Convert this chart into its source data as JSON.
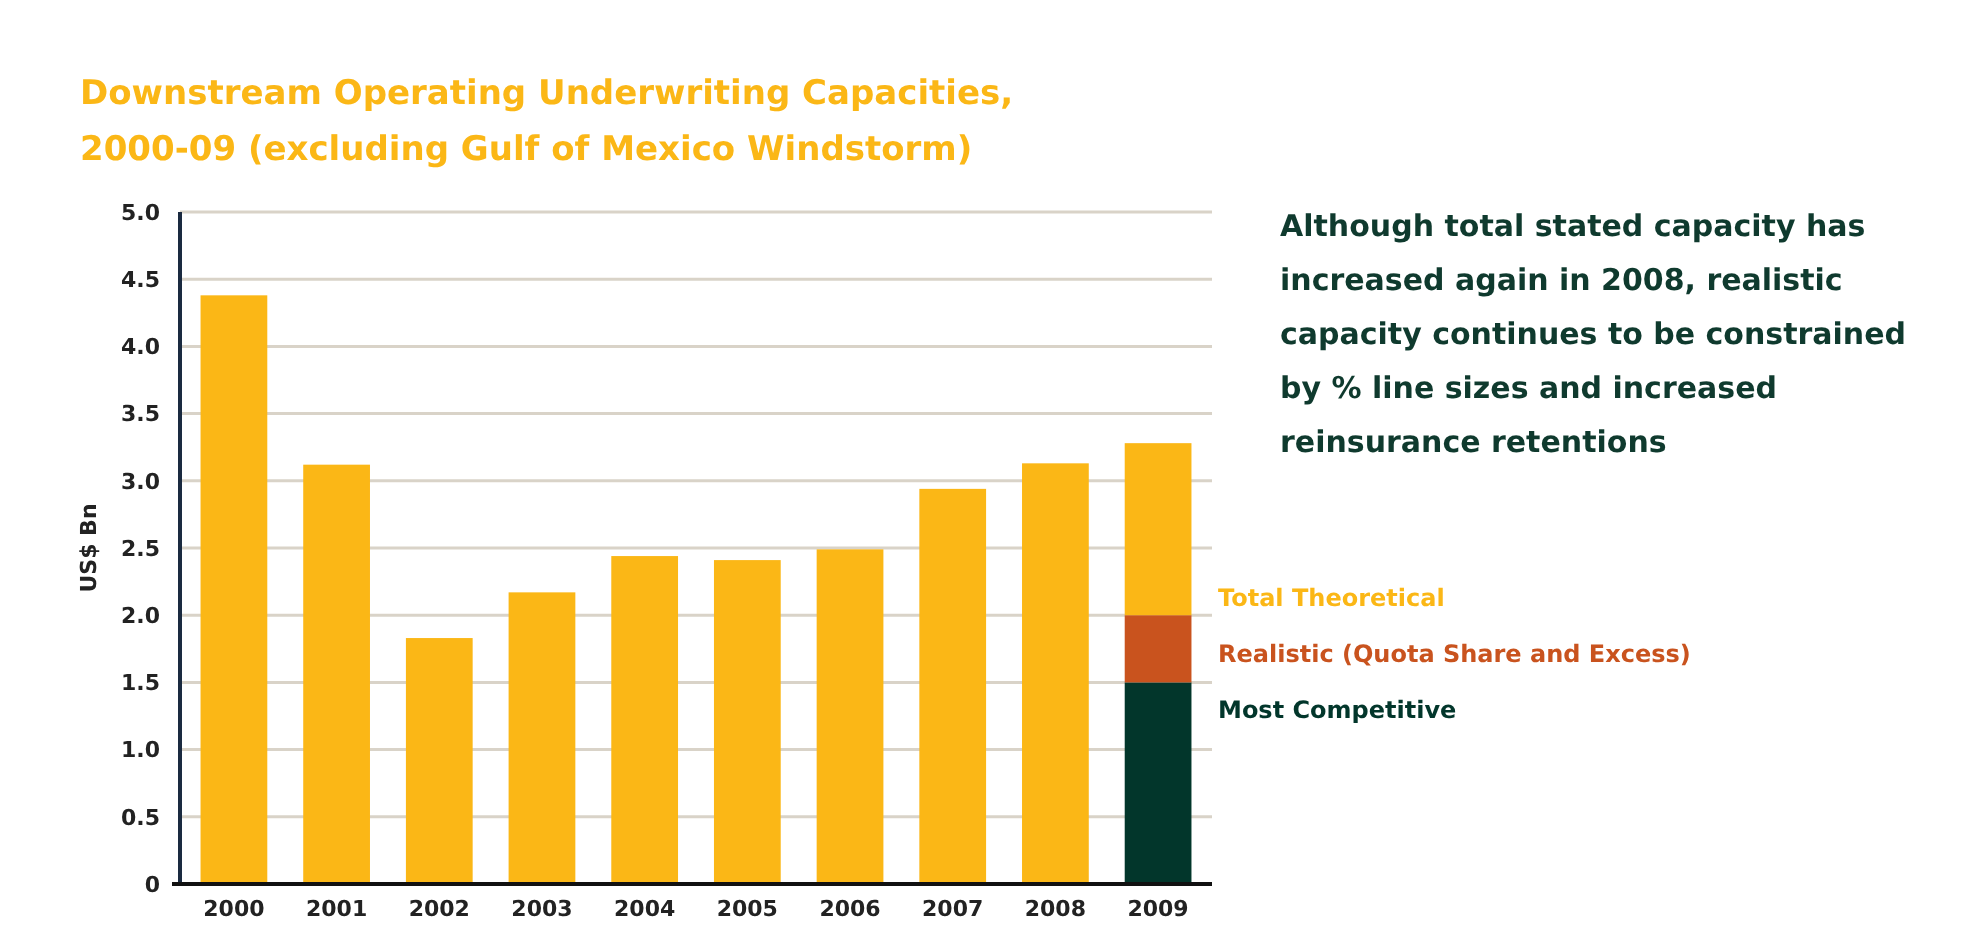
{
  "chart_data": {
    "type": "bar",
    "title": "Downstream Operating Underwriting Capacities,\n2000-09 (excluding Gulf of Mexico Windstorm)",
    "ylabel": "US$ Bn",
    "categories": [
      "2000",
      "2001",
      "2002",
      "2003",
      "2004",
      "2005",
      "2006",
      "2007",
      "2008",
      "2009"
    ],
    "stacked": true,
    "series": [
      {
        "name": "Most Competitive",
        "color": "#02362b",
        "values": [
          null,
          null,
          null,
          null,
          null,
          null,
          null,
          null,
          null,
          1.5
        ]
      },
      {
        "name": "Realistic (Quota Share and Excess)",
        "color": "#c9531e",
        "values": [
          null,
          null,
          null,
          null,
          null,
          null,
          null,
          null,
          null,
          0.5
        ]
      },
      {
        "name": "Total Theoretical",
        "color": "#fbb716",
        "values": [
          4.38,
          3.12,
          1.83,
          2.17,
          2.44,
          2.41,
          2.49,
          2.94,
          3.13,
          1.28
        ]
      }
    ],
    "ylim": [
      0,
      5
    ],
    "yticks": [
      {
        "value": 0,
        "label": "0"
      },
      {
        "value": 0.5,
        "label": "0.5"
      },
      {
        "value": 1,
        "label": "1.0"
      },
      {
        "value": 1.5,
        "label": "1.5"
      },
      {
        "value": 2,
        "label": "2.0"
      },
      {
        "value": 2.5,
        "label": "2.5"
      },
      {
        "value": 3,
        "label": "3.0"
      },
      {
        "value": 3.5,
        "label": "3.5"
      },
      {
        "value": 4,
        "label": "4.0"
      },
      {
        "value": 4.5,
        "label": "4.5"
      },
      {
        "value": 5,
        "label": "5.0"
      }
    ],
    "grid": "y",
    "legend": "right",
    "annotations": [
      "Although total stated capacity has\nincreased again in 2008, realistic\ncapacity continues to be constrained\nby % line sizes and increased\nreinsurance retentions"
    ]
  }
}
